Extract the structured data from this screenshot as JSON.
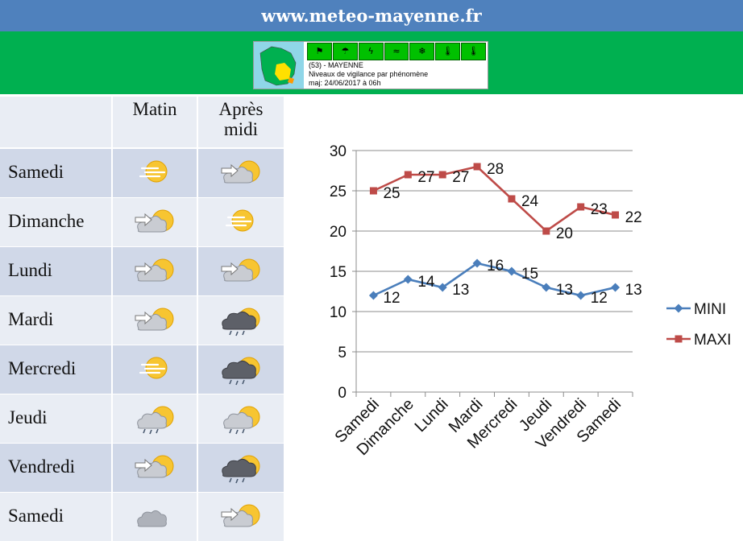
{
  "site": {
    "title": "www.meteo-mayenne.fr"
  },
  "vigilance": {
    "line1": "(53) - MAYENNE",
    "line2": "Niveaux de vigilance par phénomène",
    "line3": "maj: 24/06/2017 à 06h",
    "icons": [
      "wind",
      "rain-flood",
      "thunder",
      "flood",
      "snow-ice",
      "heat",
      "cold"
    ]
  },
  "forecast": {
    "headers": {
      "morning": "Matin",
      "afternoon_1": "Après",
      "afternoon_2": "midi"
    },
    "days": [
      {
        "name": "Samedi",
        "morning": "fog-sun",
        "afternoon": "sun-cloud"
      },
      {
        "name": "Dimanche",
        "morning": "sun-cloud",
        "afternoon": "fog-sun"
      },
      {
        "name": "Lundi",
        "morning": "sun-cloud",
        "afternoon": "sun-cloud"
      },
      {
        "name": "Mardi",
        "morning": "sun-cloud",
        "afternoon": "storm-rain"
      },
      {
        "name": "Mercredi",
        "morning": "fog-sun",
        "afternoon": "storm-rain"
      },
      {
        "name": "Jeudi",
        "morning": "cloud-rain",
        "afternoon": "cloud-rain"
      },
      {
        "name": "Vendredi",
        "morning": "sun-cloud",
        "afternoon": "storm-rain"
      },
      {
        "name": "Samedi",
        "morning": "cloud",
        "afternoon": "sun-cloud"
      }
    ],
    "colors": {
      "row_dark": "#d0d8e8",
      "row_light": "#e9edf4",
      "header": "#e9edf4"
    }
  },
  "chart_data": {
    "type": "line",
    "categories": [
      "Samedi",
      "Dimanche",
      "Lundi",
      "Mardi",
      "Mercredi",
      "Jeudi",
      "Vendredi",
      "Samedi"
    ],
    "series": [
      {
        "name": "MINI",
        "values": [
          12,
          14,
          13,
          16,
          15,
          13,
          12,
          13
        ],
        "color": "#4a7ebb",
        "marker": "diamond"
      },
      {
        "name": "MAXI",
        "values": [
          25,
          27,
          27,
          28,
          24,
          20,
          23,
          22
        ],
        "color": "#be4b48",
        "marker": "square"
      }
    ],
    "ylim": [
      0,
      30
    ],
    "yticks": [
      0,
      5,
      10,
      15,
      20,
      25,
      30
    ],
    "grid": true,
    "legend": "right",
    "data_labels": true
  }
}
